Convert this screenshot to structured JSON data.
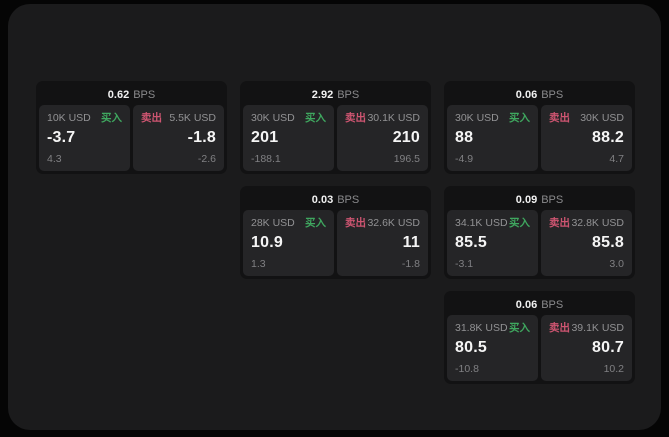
{
  "colors": {
    "buy": "#3fa75f",
    "sell": "#ce5571",
    "panel_bg": "#1b1b1c",
    "card_bg": "#121213",
    "tile_bg": "#252527"
  },
  "cards": [
    {
      "bps": "0.62",
      "unit": "BPS",
      "buy": {
        "amount": "10K USD",
        "label": "买入",
        "price": "-3.7",
        "delta": "4.3"
      },
      "sell": {
        "label": "卖出",
        "amount": "5.5K USD",
        "price": "-1.8",
        "delta": "-2.6"
      }
    },
    {
      "bps": "2.92",
      "unit": "BPS",
      "buy": {
        "amount": "30K USD",
        "label": "买入",
        "price": "201",
        "delta": "-188.1"
      },
      "sell": {
        "label": "卖出",
        "amount": "30.1K USD",
        "price": "210",
        "delta": "196.5"
      }
    },
    {
      "bps": "0.06",
      "unit": "BPS",
      "buy": {
        "amount": "30K USD",
        "label": "买入",
        "price": "88",
        "delta": "-4.9"
      },
      "sell": {
        "label": "卖出",
        "amount": "30K USD",
        "price": "88.2",
        "delta": "4.7"
      }
    },
    {
      "bps": "0.03",
      "unit": "BPS",
      "buy": {
        "amount": "28K USD",
        "label": "买入",
        "price": "10.9",
        "delta": "1.3"
      },
      "sell": {
        "label": "卖出",
        "amount": "32.6K USD",
        "price": "11",
        "delta": "-1.8"
      }
    },
    {
      "bps": "0.09",
      "unit": "BPS",
      "buy": {
        "amount": "34.1K USD",
        "label": "买入",
        "price": "85.5",
        "delta": "-3.1"
      },
      "sell": {
        "label": "卖出",
        "amount": "32.8K USD",
        "price": "85.8",
        "delta": "3.0"
      }
    },
    {
      "bps": "0.06",
      "unit": "BPS",
      "buy": {
        "amount": "31.8K USD",
        "label": "买入",
        "price": "80.5",
        "delta": "-10.8"
      },
      "sell": {
        "label": "卖出",
        "amount": "39.1K USD",
        "price": "80.7",
        "delta": "10.2"
      }
    }
  ]
}
